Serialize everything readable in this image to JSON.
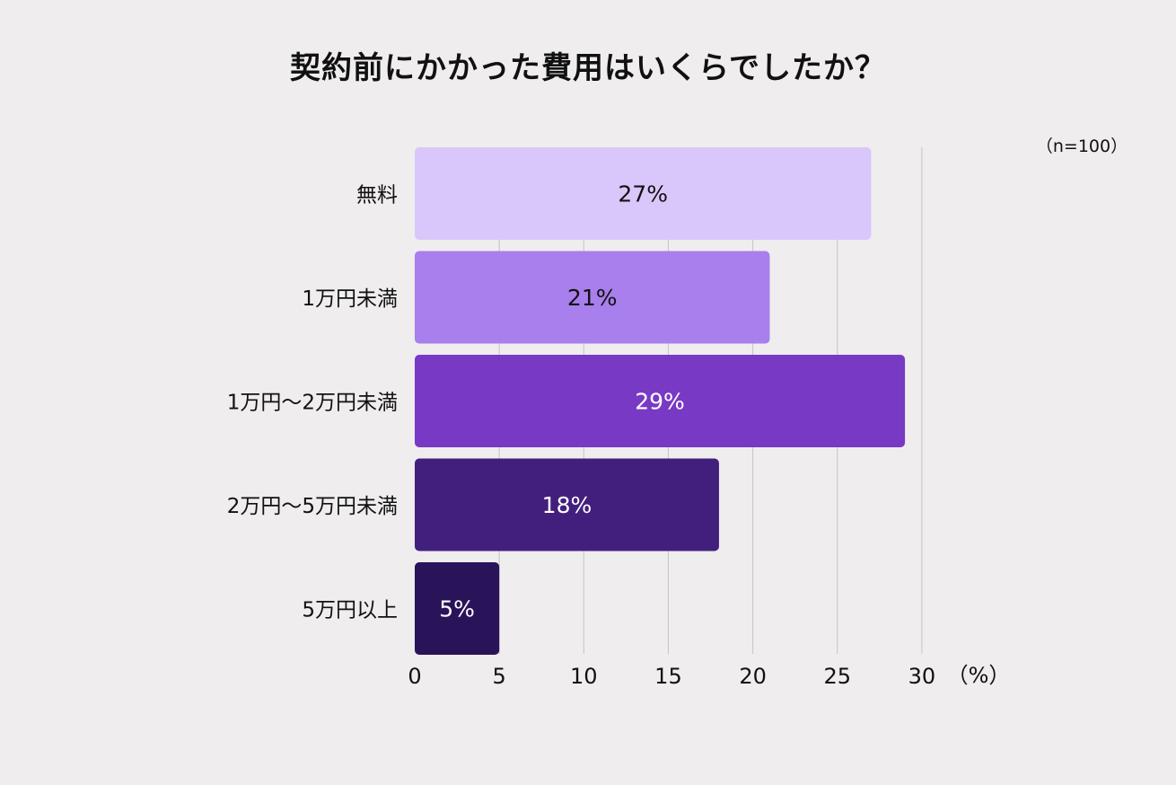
{
  "chart_data": {
    "type": "bar",
    "orientation": "horizontal",
    "title": "契約前にかかった費用はいくらでしたか？",
    "note": "（n=100）",
    "categories": [
      "無料",
      "1万円未満",
      "1万円〜2万円未満",
      "2万円〜5万円未満",
      "5万円以上"
    ],
    "values": [
      27,
      21,
      29,
      18,
      5
    ],
    "value_labels": [
      "27%",
      "21%",
      "29%",
      "18%",
      "5%"
    ],
    "colors": [
      "#d9c7fb",
      "#a87fec",
      "#7839c5",
      "#431f7d",
      "#2a1459"
    ],
    "label_colors": [
      "#111111",
      "#111111",
      "#ffffff",
      "#ffffff",
      "#ffffff"
    ],
    "xlim": [
      0,
      30
    ],
    "xticks": [
      0,
      5,
      10,
      15,
      20,
      25,
      30
    ],
    "xtick_labels": [
      "0",
      "5",
      "10",
      "15",
      "20",
      "25",
      "30"
    ],
    "xunit": "（%）",
    "grid": "vertical"
  }
}
